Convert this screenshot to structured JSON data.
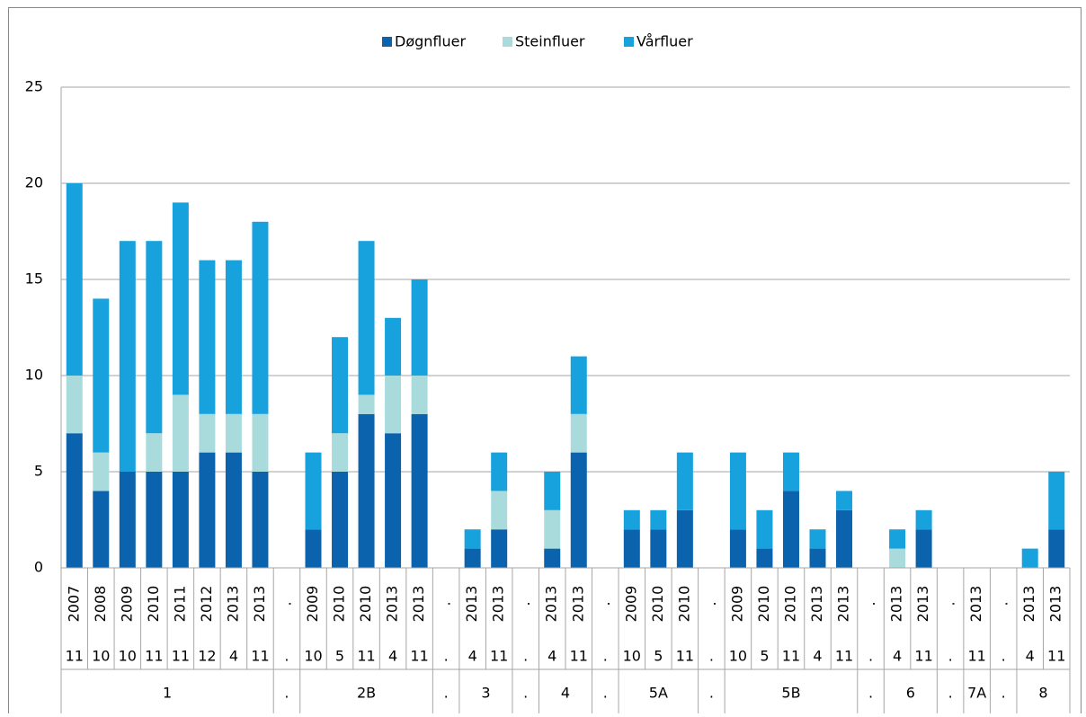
{
  "chart_data": {
    "type": "stacked_bar",
    "categories": [
      "2007",
      "2008",
      "2009",
      "2010",
      "2011",
      "2012",
      "2013",
      "2013",
      ".",
      "2009",
      "2010",
      "2010",
      "2013",
      "2013",
      ".",
      "2013",
      "2013",
      ".",
      "2013",
      "2013",
      ".",
      "2009",
      "2010",
      "2010",
      ".",
      "2009",
      "2010",
      "2010",
      "2013",
      "2013",
      ".",
      "2013",
      "2013",
      ".",
      "2013",
      ".",
      "2013",
      "2013"
    ],
    "months": [
      "11",
      "10",
      "10",
      "11",
      "11",
      "12",
      "4",
      "11",
      ".",
      "10",
      "5",
      "11",
      "4",
      "11",
      ".",
      "4",
      "11",
      ".",
      "4",
      "11",
      ".",
      "10",
      "5",
      "11",
      ".",
      "10",
      "5",
      "11",
      "4",
      "11",
      ".",
      "4",
      "11",
      ".",
      "11",
      ".",
      "4",
      "11"
    ],
    "category_groups": [
      "1",
      "1",
      "1",
      "1",
      "1",
      "1",
      "1",
      "1",
      ".",
      "2B",
      "2B",
      "2B",
      "2B",
      "2B",
      ".",
      "3",
      "3",
      ".",
      "4",
      "4",
      ".",
      "5A",
      "5A",
      "5A",
      ".",
      "5B",
      "5B",
      "5B",
      "5B",
      "5B",
      ".",
      "6",
      "6",
      ".",
      "7A",
      ".",
      "8",
      "8"
    ],
    "series": [
      {
        "name": "Døgnfluer",
        "color": "#0b63ad",
        "values": [
          7,
          4,
          5,
          5,
          5,
          6,
          6,
          5,
          null,
          2,
          5,
          8,
          7,
          8,
          null,
          1,
          2,
          null,
          1,
          6,
          null,
          2,
          2,
          3,
          null,
          2,
          1,
          4,
          1,
          3,
          null,
          0,
          2,
          null,
          0,
          null,
          0,
          2
        ]
      },
      {
        "name": "Steinfluer",
        "color": "#a9dbdd",
        "values": [
          3,
          2,
          0,
          2,
          4,
          2,
          2,
          3,
          null,
          0,
          2,
          1,
          3,
          2,
          null,
          0,
          2,
          null,
          2,
          2,
          null,
          0,
          0,
          0,
          null,
          0,
          0,
          0,
          0,
          0,
          null,
          1,
          0,
          null,
          0,
          null,
          0,
          0
        ]
      },
      {
        "name": "Vårfluer",
        "color": "#17a2de",
        "values": [
          10,
          8,
          12,
          10,
          10,
          8,
          8,
          10,
          null,
          4,
          5,
          8,
          3,
          5,
          null,
          1,
          2,
          null,
          2,
          3,
          null,
          1,
          1,
          3,
          null,
          4,
          2,
          2,
          1,
          1,
          null,
          1,
          1,
          null,
          0,
          null,
          1,
          3
        ]
      }
    ],
    "ylim": [
      0,
      25
    ],
    "yticks": [
      0,
      5,
      10,
      15,
      20,
      25
    ],
    "grid": true,
    "legend": "top"
  }
}
